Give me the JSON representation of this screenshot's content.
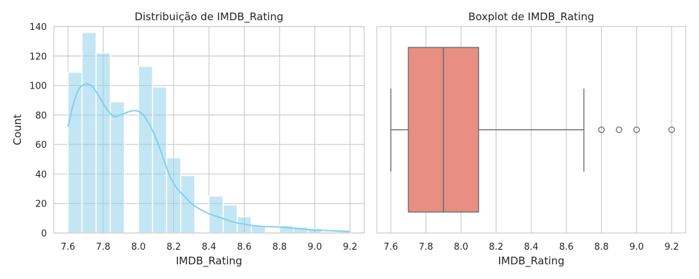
{
  "figure": {
    "background": "#ffffff",
    "grid_color": "#cccccc",
    "text_color": "#262626"
  },
  "chart_data": [
    {
      "type": "bar",
      "subtype": "histogram_with_kde",
      "title": "Distribuição de IMDB_Rating",
      "xlabel": "IMDB_Rating",
      "ylabel": "Count",
      "xlim": [
        7.52,
        9.28
      ],
      "ylim": [
        0,
        140
      ],
      "xticks": [
        "7.6",
        "7.8",
        "8.0",
        "8.2",
        "8.4",
        "8.6",
        "8.8",
        "9.0",
        "9.2"
      ],
      "yticks": [
        "0",
        "20",
        "40",
        "60",
        "80",
        "100",
        "120",
        "140"
      ],
      "grid": true,
      "bar_color": "#87ceeb",
      "bar_opacity": 0.5,
      "kde_color": "#87ceeb",
      "bins": [
        {
          "x0": 7.6,
          "x1": 7.68,
          "value": 109
        },
        {
          "x0": 7.68,
          "x1": 7.76,
          "value": 136
        },
        {
          "x0": 7.76,
          "x1": 7.84,
          "value": 122
        },
        {
          "x0": 7.84,
          "x1": 7.92,
          "value": 89
        },
        {
          "x0": 7.92,
          "x1": 8.0,
          "value": 0
        },
        {
          "x0": 8.0,
          "x1": 8.08,
          "value": 113
        },
        {
          "x0": 8.08,
          "x1": 8.16,
          "value": 99
        },
        {
          "x0": 8.16,
          "x1": 8.24,
          "value": 51
        },
        {
          "x0": 8.24,
          "x1": 8.32,
          "value": 39
        },
        {
          "x0": 8.32,
          "x1": 8.4,
          "value": 0
        },
        {
          "x0": 8.4,
          "x1": 8.48,
          "value": 25
        },
        {
          "x0": 8.48,
          "x1": 8.56,
          "value": 19
        },
        {
          "x0": 8.56,
          "x1": 8.64,
          "value": 11
        },
        {
          "x0": 8.64,
          "x1": 8.72,
          "value": 5
        },
        {
          "x0": 8.72,
          "x1": 8.8,
          "value": 0
        },
        {
          "x0": 8.8,
          "x1": 8.88,
          "value": 5
        },
        {
          "x0": 8.88,
          "x1": 8.96,
          "value": 4
        },
        {
          "x0": 8.96,
          "x1": 9.04,
          "value": 3
        },
        {
          "x0": 9.04,
          "x1": 9.12,
          "value": 0
        },
        {
          "x0": 9.12,
          "x1": 9.2,
          "value": 1
        }
      ],
      "kde": {
        "x": [
          7.6,
          7.63,
          7.66,
          7.7,
          7.74,
          7.78,
          7.82,
          7.86,
          7.9,
          7.94,
          7.98,
          8.02,
          8.06,
          8.1,
          8.14,
          8.18,
          8.22,
          8.26,
          8.3,
          8.35,
          8.4,
          8.45,
          8.5,
          8.55,
          8.6,
          8.65,
          8.7,
          8.8,
          8.9,
          9.0,
          9.1,
          9.2
        ],
        "y": [
          72,
          87,
          97,
          101,
          99,
          92,
          84,
          79,
          80,
          82,
          83,
          81,
          74,
          64,
          51,
          38,
          30,
          25,
          20,
          16,
          13,
          11,
          9,
          7,
          6,
          5,
          4.5,
          4,
          3,
          2,
          1.5,
          1
        ]
      }
    },
    {
      "type": "boxplot",
      "title": "Boxplot de IMDB_Rating",
      "xlabel": "IMDB_Rating",
      "xlim": [
        7.52,
        9.28
      ],
      "xticks": [
        "7.6",
        "7.8",
        "8.0",
        "8.2",
        "8.4",
        "8.6",
        "8.8",
        "9.0",
        "9.2"
      ],
      "grid": true,
      "box_color": "#e88e82",
      "line_color": "#6e6e6e",
      "whisker_low": 7.6,
      "q1": 7.7,
      "median": 7.9,
      "q3": 8.1,
      "whisker_high": 8.7,
      "outliers": [
        8.8,
        8.9,
        9.0,
        9.2
      ]
    }
  ]
}
